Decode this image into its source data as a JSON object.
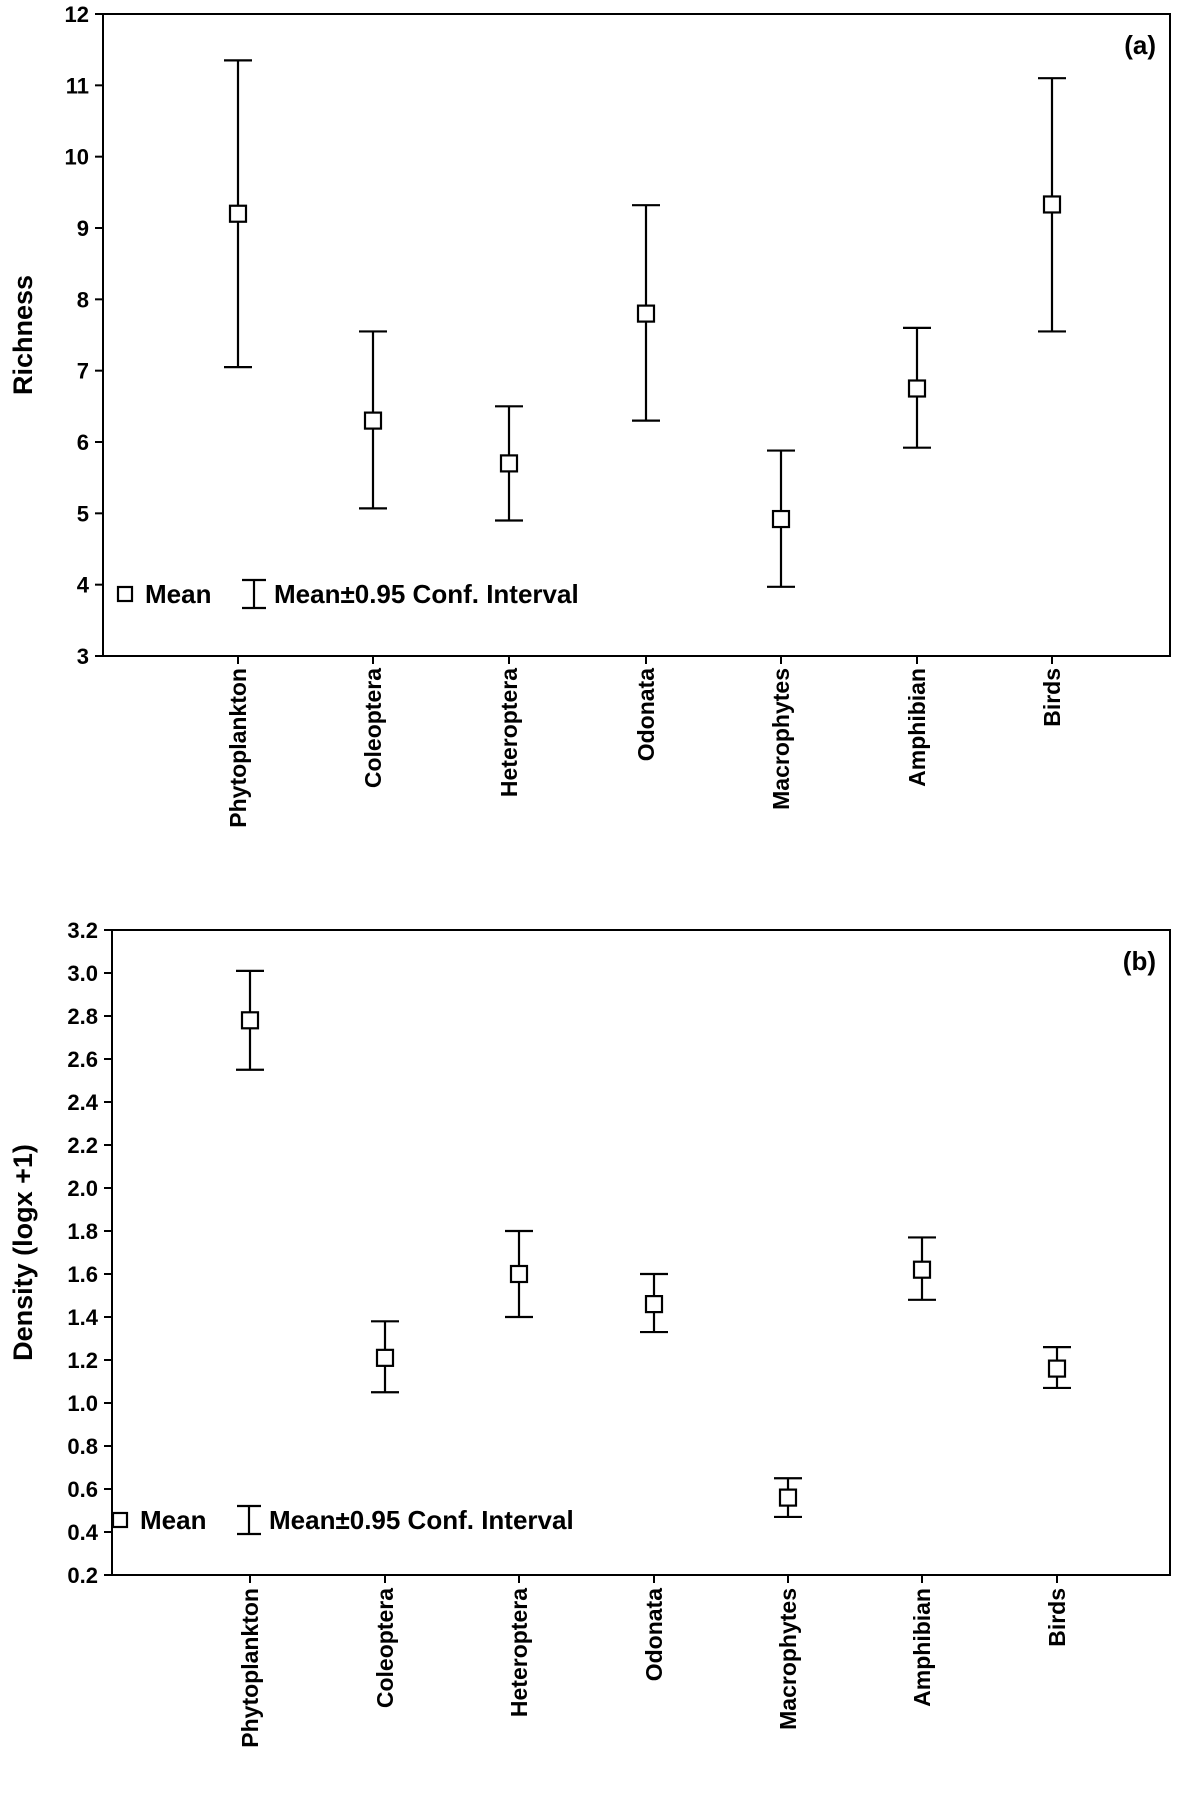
{
  "chart_data": [
    {
      "type": "scatter",
      "panel_label": "(a)",
      "ylabel": "Richness",
      "ylim": [
        3,
        12
      ],
      "yticks": [
        "3",
        "4",
        "5",
        "6",
        "7",
        "8",
        "9",
        "10",
        "11",
        "12"
      ],
      "categories": [
        "Phytoplankton",
        "Coleoptera",
        "Heteroptera",
        "Odonata",
        "Macrophytes",
        "Amphibian",
        "Birds"
      ],
      "mean": [
        9.2,
        6.3,
        5.7,
        7.8,
        4.92,
        6.75,
        9.33
      ],
      "lower": [
        7.05,
        5.07,
        4.9,
        6.3,
        3.97,
        5.92,
        7.55
      ],
      "upper": [
        11.35,
        7.55,
        6.5,
        9.32,
        5.88,
        7.6,
        11.1
      ],
      "legend": {
        "mean_label": "Mean",
        "ci_label": "Mean±0.95 Conf. Interval",
        "position": "bottom-left"
      }
    },
    {
      "type": "scatter",
      "panel_label": "(b)",
      "ylabel": "Density (logx +1)",
      "ylim": [
        0.2,
        3.2
      ],
      "yticks": [
        "0.2",
        "0.4",
        "0.6",
        "0.8",
        "1.0",
        "1.2",
        "1.4",
        "1.6",
        "1.8",
        "2.0",
        "2.2",
        "2.4",
        "2.6",
        "2.8",
        "3.0",
        "3.2"
      ],
      "categories": [
        "Phytoplankton",
        "Coleoptera",
        "Heteroptera",
        "Odonata",
        "Macrophytes",
        "Amphibian",
        "Birds"
      ],
      "mean": [
        2.78,
        1.21,
        1.6,
        1.46,
        0.56,
        1.62,
        1.16
      ],
      "lower": [
        2.55,
        1.05,
        1.4,
        1.33,
        0.47,
        1.48,
        1.07
      ],
      "upper": [
        3.01,
        1.38,
        1.8,
        1.6,
        0.65,
        1.77,
        1.26
      ],
      "legend": {
        "mean_label": "Mean",
        "ci_label": "Mean±0.95 Conf. Interval",
        "position": "bottom-left"
      }
    }
  ]
}
